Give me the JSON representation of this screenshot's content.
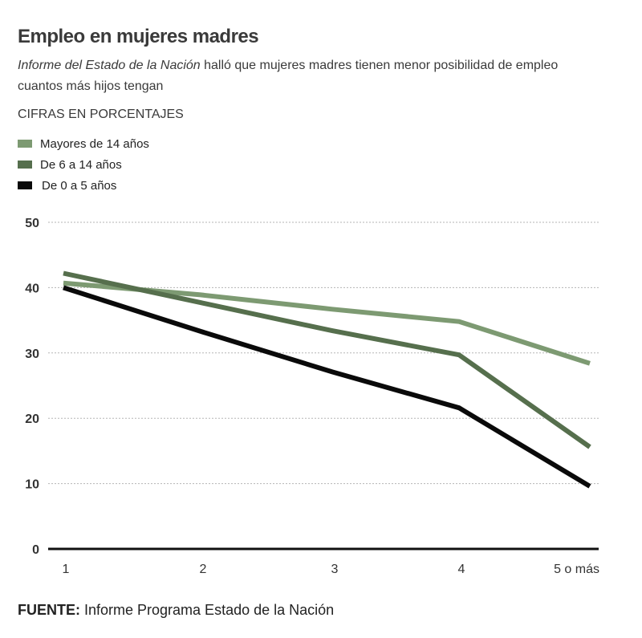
{
  "header": {
    "title": "Empleo en mujeres madres",
    "subtitle_italic": "Informe del Estado de la Nación",
    "subtitle_rest": " halló que mujeres madres tienen menor posibilidad de empleo cuantos más hijos tengan",
    "units": "CIFRAS EN PORCENTAJES"
  },
  "footer": {
    "label": "FUENTE:",
    "text": " Informe Programa Estado de la Nación"
  },
  "chart_data": {
    "type": "line",
    "title": "Empleo en mujeres madres",
    "xlabel": "",
    "ylabel": "CIFRAS EN PORCENTAJES",
    "categories": [
      "1",
      "2",
      "3",
      "4",
      "5 o más"
    ],
    "ylim": [
      0,
      50
    ],
    "yticks": [
      0,
      10,
      20,
      30,
      40,
      50
    ],
    "grid": true,
    "legend_position": "top-left",
    "series": [
      {
        "name": "Mayores de 14 años",
        "color": "#7d9a72",
        "values": [
          40.7,
          38.9,
          36.7,
          34.8,
          28.4
        ]
      },
      {
        "name": "De 6 a 14 años",
        "color": "#566f4d",
        "values": [
          42.2,
          37.7,
          33.4,
          29.7,
          15.6
        ]
      },
      {
        "name": "De 0 a 5 años",
        "color": "#0a0a0a",
        "values": [
          40.0,
          33.3,
          27.1,
          21.6,
          9.6
        ]
      }
    ]
  }
}
